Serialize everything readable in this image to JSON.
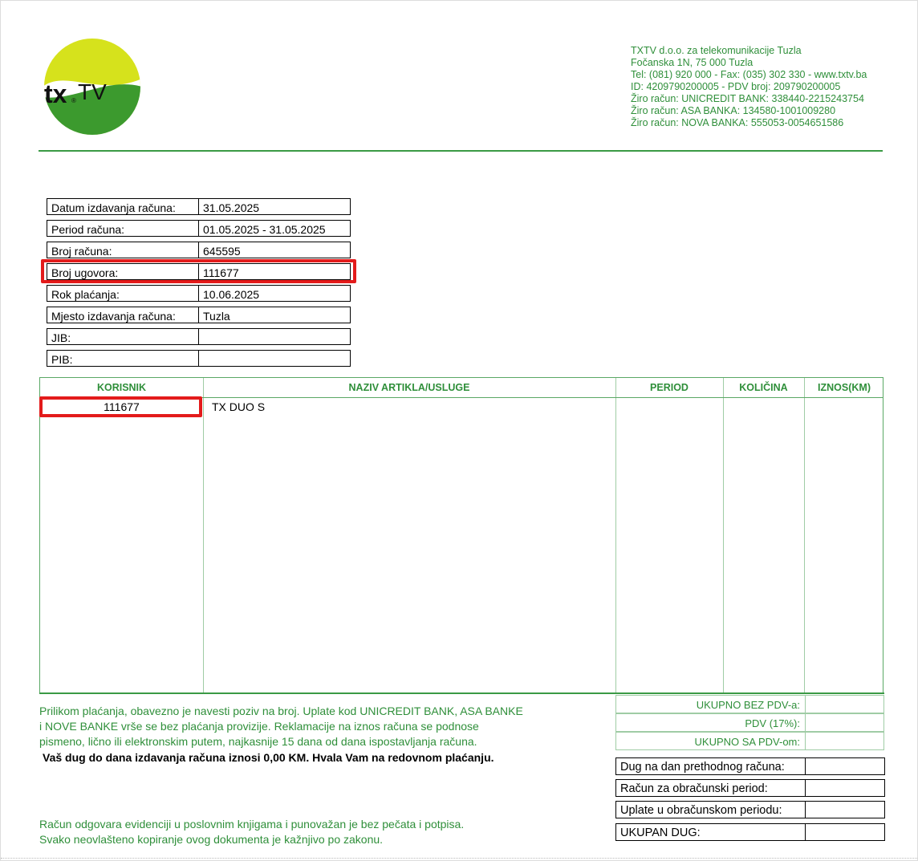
{
  "company": {
    "logo_text": "tx.TV",
    "lines": [
      "TXTV d.o.o. za telekomunikacije Tuzla",
      "Fočanska 1N, 75 000 Tuzla",
      "Tel: (081) 920 000 - Fax: (035) 302 330 - www.txtv.ba",
      "ID: 4209790200005 - PDV broj: 209790200005",
      "Žiro račun: UNICREDIT BANK: 338440-2215243754",
      "Žiro račun: ASA BANKA: 134580-1001009280",
      "Žiro račun: NOVA BANKA: 555053-0054651586"
    ]
  },
  "info": [
    {
      "label": "Datum izdavanja računa:",
      "value": "31.05.2025"
    },
    {
      "label": "Period računa:",
      "value": "01.05.2025 - 31.05.2025"
    },
    {
      "label": "Broj računa:",
      "value": "645595"
    },
    {
      "label": "Broj ugovora:",
      "value": "111677"
    },
    {
      "label": "Rok plaćanja:",
      "value": "10.06.2025"
    },
    {
      "label": "Mjesto izdavanja računa:",
      "value": "Tuzla"
    },
    {
      "label": "JIB:",
      "value": ""
    },
    {
      "label": "PIB:",
      "value": ""
    }
  ],
  "table": {
    "headers": [
      "KORISNIK",
      "NAZIV ARTIKLA/USLUGE",
      "PERIOD",
      "KOLIČINA",
      "IZNOS(KM)"
    ],
    "rows": [
      {
        "korisnik": "111677",
        "naziv": "TX DUO S",
        "period": "",
        "kolicina": "",
        "iznos": ""
      }
    ]
  },
  "totals": [
    {
      "label": "UKUPNO BEZ PDV-a:",
      "value": ""
    },
    {
      "label": "PDV (17%):",
      "value": ""
    },
    {
      "label": "UKUPNO SA PDV-om:",
      "value": ""
    }
  ],
  "debt": [
    {
      "label": "Dug na dan prethodnog računa:",
      "value": ""
    },
    {
      "label": "Račun za obračunski period:",
      "value": ""
    },
    {
      "label": "Uplate u obračunskom periodu:",
      "value": ""
    },
    {
      "label": "UKUPAN DUG:",
      "value": ""
    }
  ],
  "notes": {
    "payment_1": "Prilikom plaćanja, obavezno je navesti poziv na broj. Uplate kod UNICREDIT BANK, ASA BANKE",
    "payment_2": "i NOVE BANKE vrše se bez plaćanja provizije. Reklamacije na iznos računa se podnose",
    "payment_3": "pismeno, lično ili elektronskim putem, najkasnije 15 dana od dana ispostavljanja računa.",
    "debt_msg": "Vaš dug do dana izdavanja računa iznosi 0,00 KM. Hvala Vam na redovnom plaćanju.",
    "legal_1": "Račun odgovara evidenciji u poslovnim knjigama i punovažan je bez pečata i potpisa.",
    "legal_2": "Svako neovlašteno kopiranje ovog dokumenta je kažnjivo po zakonu."
  },
  "colors": {
    "brand_green": "#2f8f3a",
    "highlight": "#e31b1b"
  }
}
